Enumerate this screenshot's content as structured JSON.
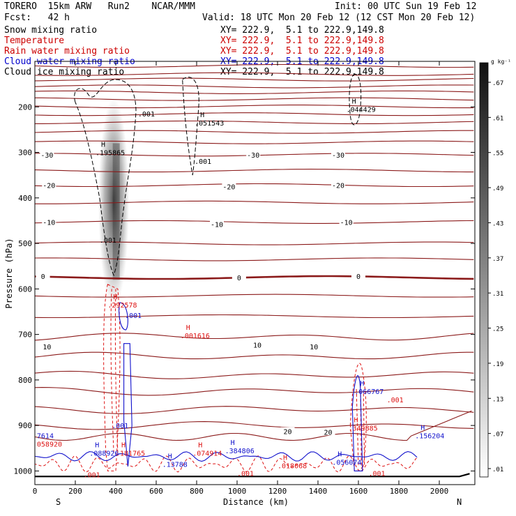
{
  "header": {
    "model": "TORERO  15km ARW   Run2    NCAR/MMM",
    "forecast": "Fcst:   42 h",
    "init": "Init: 00 UTC Sun 19 Feb 12",
    "valid": "Valid: 18 UTC Mon 20 Feb 12 (12 CST Mon 20 Feb 12)",
    "fields": [
      {
        "name": "Snow mixing ratio",
        "xy": "XY= 222.9,  5.1 to 222.9,149.8",
        "color": "#000000"
      },
      {
        "name": "Temperature",
        "xy": "XY= 222.9,  5.1 to 222.9,149.8",
        "color": "#cc0000"
      },
      {
        "name": "Rain water mixing ratio",
        "xy": "XY= 222.9,  5.1 to 222.9,149.8",
        "color": "#cc0000"
      },
      {
        "name": "Cloud water mixing ratio",
        "xy": "XY= 222.9,  5.1 to 222.9,149.8",
        "color": "#0000cc"
      },
      {
        "name": "Cloud ice mixing ratio",
        "xy": "XY= 222.9,  5.1 to 222.9,149.8",
        "color": "#000000"
      }
    ]
  },
  "colors": {
    "temperature": "#8b1a1a",
    "rain": "#dd1111",
    "cloud_water": "#1111cc",
    "snow": "#000000",
    "ice": "#000000"
  },
  "chart_data": {
    "type": "cross-section",
    "xlabel": "Distance (km)",
    "ylabel": "Pressure (hPa)",
    "xlim": [
      0,
      2170
    ],
    "ylim": [
      1030,
      100
    ],
    "x_ticks": [
      "0",
      "200",
      "400",
      "600",
      "800",
      "1000",
      "1200",
      "1400",
      "1600",
      "1800",
      "2000"
    ],
    "y_ticks": [
      "200",
      "300",
      "400",
      "500",
      "600",
      "700",
      "800",
      "900",
      "1000"
    ],
    "direction_left": "S",
    "direction_right": "N",
    "colorbar_unit": "g kg⁻¹",
    "colorbar_labels": [
      ".01",
      ".07",
      ".13",
      ".19",
      ".25",
      ".31",
      ".37",
      ".43",
      ".49",
      ".55",
      ".61",
      ".67"
    ],
    "temperature_labels": [
      {
        "text": "-30",
        "x": 60,
        "p": 305
      },
      {
        "text": "-30",
        "x": 1080,
        "p": 305
      },
      {
        "text": "-30",
        "x": 1500,
        "p": 305
      },
      {
        "text": "-20",
        "x": 70,
        "p": 372
      },
      {
        "text": "-20",
        "x": 960,
        "p": 375
      },
      {
        "text": "-20",
        "x": 1500,
        "p": 372
      },
      {
        "text": "-10",
        "x": 70,
        "p": 453
      },
      {
        "text": "-10",
        "x": 900,
        "p": 458
      },
      {
        "text": "-10",
        "x": 1540,
        "p": 453
      },
      {
        "text": "0",
        "x": 40,
        "p": 572
      },
      {
        "text": "0",
        "x": 1010,
        "p": 575
      },
      {
        "text": "0",
        "x": 1600,
        "p": 572
      },
      {
        "text": "10",
        "x": 60,
        "p": 727
      },
      {
        "text": "10",
        "x": 1100,
        "p": 723
      },
      {
        "text": "10",
        "x": 1380,
        "p": 727
      },
      {
        "text": "20",
        "x": 1250,
        "p": 913
      },
      {
        "text": "20",
        "x": 1450,
        "p": 914
      }
    ],
    "max_labels": [
      {
        "h": "H",
        "value": ".195865",
        "x": 300,
        "p": 300,
        "field": "snow"
      },
      {
        "h": "H",
        "value": ".051543",
        "x": 790,
        "p": 235,
        "field": "snow"
      },
      {
        "h": "H",
        "value": ".044429",
        "x": 1540,
        "p": 205,
        "field": "snow"
      },
      {
        "h": "H",
        "value": ".292578",
        "x": 360,
        "p": 635,
        "field": "rain"
      },
      {
        "h": "H",
        "value": ".001616",
        "x": 720,
        "p": 702,
        "field": "rain"
      },
      {
        "h": "H",
        "value": ".349885",
        "x": 1550,
        "p": 905,
        "field": "rain"
      },
      {
        "h": "H",
        "value": ".074914",
        "x": 780,
        "p": 960,
        "field": "rain"
      },
      {
        "h": "H",
        "value": ".018068",
        "x": 1200,
        "p": 988,
        "field": "rain"
      },
      {
        "h": "H",
        "value": ".066767",
        "x": 1580,
        "p": 825,
        "field": "cloud_water"
      },
      {
        "h": "H",
        "value": ".156204",
        "x": 1880,
        "p": 922,
        "field": "cloud_water"
      },
      {
        "h": "H",
        "value": ".384806",
        "x": 940,
        "p": 955,
        "field": "cloud_water"
      },
      {
        "h": "H",
        "value": ".056074",
        "x": 1470,
        "p": 980,
        "field": "cloud_water"
      },
      {
        "h": "H",
        "value": ".13788",
        "x": 630,
        "p": 985,
        "field": "cloud_water"
      },
      {
        "h": "H",
        "value": ".088926",
        "x": 270,
        "p": 960,
        "field": "cloud_water"
      },
      {
        "h": "H",
        "value": ".181765",
        "x": 400,
        "p": 960,
        "field": "rain"
      },
      {
        "h": "",
        "value": "7614",
        "x": 10,
        "p": 922,
        "field": "cloud_water"
      },
      {
        "h": "",
        "value": "058920",
        "x": 10,
        "p": 940,
        "field": "rain"
      }
    ],
    "small_labels": [
      {
        "text": ".001",
        "x": 510,
        "p": 215,
        "field": "snow"
      },
      {
        "text": ".001",
        "x": 790,
        "p": 319,
        "field": "snow"
      },
      {
        "text": ".001",
        "x": 320,
        "p": 492,
        "field": "snow"
      },
      {
        "text": ".001",
        "x": 445,
        "p": 658,
        "field": "cloud_water"
      },
      {
        "text": ".001",
        "x": 380,
        "p": 900,
        "field": "cloud_water"
      },
      {
        "text": ".001",
        "x": 240,
        "p": 1008,
        "field": "rain"
      },
      {
        "text": ".001",
        "x": 1740,
        "p": 843,
        "field": "rain"
      },
      {
        "text": ".001",
        "x": 1650,
        "p": 1005,
        "field": "rain"
      },
      {
        "text": ".001",
        "x": 1000,
        "p": 1005,
        "field": "rain"
      }
    ]
  }
}
